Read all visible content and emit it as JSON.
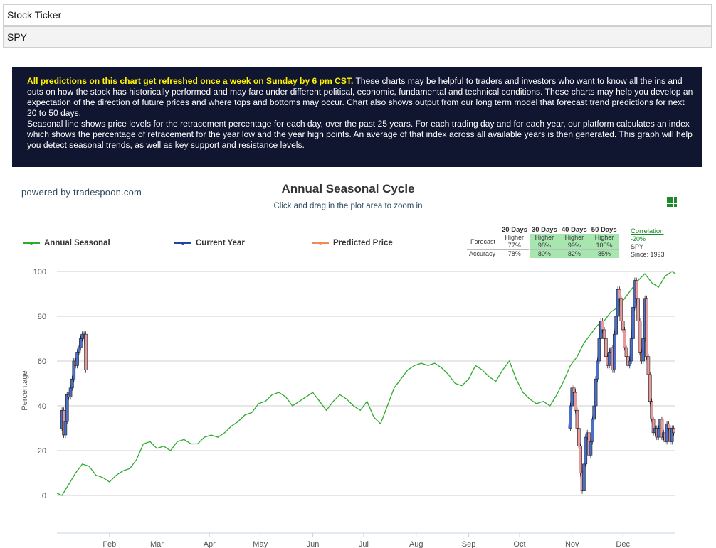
{
  "ticker": {
    "label": "Stock Ticker",
    "value": "SPY"
  },
  "notice": {
    "highlight": "All predictions on this chart get refreshed once a week on Sunday by 6 pm CST.",
    "text1": " These charts may be helpful to traders and investors who want to know all the ins and outs on how the stock has historically performed and may fare under different political, economic, fundamental and technical conditions. These charts may help you develop an expectation of the direction of future prices and where tops and bottoms may occur. Chart also shows output from our long term model that forecast trend predictions for next 20 to 50 days.",
    "text2": "Seasonal line shows price levels for the retracement percentage for each day, over the past 25 years. For each trading day and for each year, our platform calculates an index which shows the percentage of retracement for the year low and the year high points. An average of that index across all available years is then generated. This graph will help you detect seasonal trends, as well as key support and resistance levels."
  },
  "powered_by": "powered by tradespoon.com",
  "forecast": {
    "headers": [
      "20 Days",
      "30 Days",
      "40 Days",
      "50 Days"
    ],
    "forecast_label": "Forecast",
    "accuracy_label": "Accuracy",
    "direction": [
      "Higher",
      "Higher",
      "Higher",
      "Higher"
    ],
    "probability": [
      "77%",
      "98%",
      "99%",
      "100%"
    ],
    "accuracy": [
      "78%",
      "80%",
      "82%",
      "85%"
    ],
    "correlation_link": "Correlation",
    "correlation_value": "-20%",
    "symbol": "SPY",
    "since": "Since: 1993",
    "colors": {
      "highlight": "#a8e6b0",
      "link": "#1a8a2a"
    }
  },
  "colors": {
    "seasonal": "#2eaa2e",
    "current": "#2244aa",
    "predicted": "#f08a5a",
    "up_candle": "#4a6fc8",
    "down_candle": "#e89a9a"
  },
  "chart_data": {
    "type": "line",
    "title": "Annual Seasonal Cycle",
    "subtitle": "Click and drag in the plot area to zoom in",
    "ylabel": "Percentage",
    "xlabel": "",
    "ylim": [
      0,
      100
    ],
    "y_ticks": [
      0,
      20,
      40,
      60,
      80,
      100
    ],
    "x_range_days": [
      1,
      366
    ],
    "x_ticks": [
      {
        "label": "Feb",
        "day": 32
      },
      {
        "label": "Mar",
        "day": 60
      },
      {
        "label": "Apr",
        "day": 91
      },
      {
        "label": "May",
        "day": 121
      },
      {
        "label": "Jun",
        "day": 152
      },
      {
        "label": "Jul",
        "day": 182
      },
      {
        "label": "Aug",
        "day": 213
      },
      {
        "label": "Sep",
        "day": 244
      },
      {
        "label": "Oct",
        "day": 274
      },
      {
        "label": "Nov",
        "day": 305
      },
      {
        "label": "Dec",
        "day": 335
      }
    ],
    "legend": [
      "Annual Seasonal",
      "Current Year",
      "Predicted Price"
    ],
    "grid": true,
    "series": [
      {
        "name": "Annual Seasonal",
        "x": [
          1,
          4,
          8,
          12,
          16,
          20,
          24,
          28,
          32,
          36,
          40,
          44,
          48,
          52,
          56,
          60,
          64,
          68,
          72,
          76,
          80,
          84,
          88,
          92,
          96,
          100,
          104,
          108,
          112,
          116,
          120,
          124,
          128,
          132,
          136,
          140,
          144,
          148,
          152,
          156,
          160,
          164,
          168,
          172,
          176,
          180,
          184,
          188,
          192,
          196,
          200,
          204,
          208,
          212,
          216,
          220,
          224,
          228,
          232,
          236,
          240,
          244,
          248,
          252,
          256,
          260,
          264,
          268,
          272,
          276,
          280,
          284,
          288,
          292,
          296,
          300,
          304,
          308,
          312,
          316,
          320,
          324,
          328,
          332,
          336,
          340,
          344,
          348,
          352,
          356,
          360,
          364,
          366
        ],
        "y": [
          1,
          0,
          5,
          10,
          14,
          13,
          9,
          8,
          6,
          9,
          11,
          12,
          16,
          23,
          24,
          21,
          22,
          20,
          24,
          25,
          23,
          23,
          26,
          27,
          26,
          28,
          31,
          33,
          36,
          37,
          41,
          42,
          45,
          46,
          44,
          40,
          42,
          44,
          46,
          42,
          38,
          42,
          45,
          43,
          40,
          38,
          42,
          35,
          32,
          40,
          48,
          52,
          56,
          58,
          59,
          58,
          59,
          57,
          54,
          50,
          49,
          52,
          58,
          56,
          53,
          51,
          56,
          60,
          52,
          46,
          43,
          41,
          42,
          40,
          45,
          51,
          58,
          62,
          68,
          72,
          76,
          78,
          82,
          84,
          88,
          92,
          96,
          99,
          95,
          93,
          98,
          100,
          99
        ]
      },
      {
        "name": "Current Year",
        "x": [
          3,
          4,
          5,
          6,
          7,
          8,
          9,
          10,
          11,
          12,
          13,
          14,
          15,
          16,
          17,
          18,
          303,
          304,
          305,
          306,
          307,
          308,
          309,
          310,
          311,
          312,
          313,
          314,
          315,
          316,
          317,
          318,
          319,
          320,
          321,
          322,
          323,
          324,
          325,
          326,
          327,
          328,
          329,
          330,
          331,
          332,
          333,
          334,
          335,
          336,
          337,
          338,
          339,
          340,
          341,
          342,
          343,
          344,
          345,
          346,
          347,
          348,
          349,
          350,
          351,
          352,
          353,
          354,
          355,
          356,
          357,
          358,
          359,
          360,
          361,
          362,
          363,
          364,
          365
        ],
        "y": [
          30,
          38,
          27,
          33,
          45,
          44,
          48,
          52,
          60,
          58,
          64,
          66,
          70,
          72,
          72,
          56,
          30,
          40,
          48,
          46,
          38,
          30,
          22,
          10,
          2,
          14,
          26,
          28,
          18,
          24,
          34,
          40,
          52,
          60,
          70,
          78,
          74,
          70,
          62,
          58,
          64,
          66,
          56,
          72,
          80,
          92,
          88,
          78,
          74,
          66,
          62,
          58,
          60,
          70,
          84,
          96,
          88,
          78,
          64,
          60,
          70,
          88,
          62,
          54,
          42,
          34,
          28,
          30,
          26,
          30,
          34,
          26,
          28,
          24,
          32,
          30,
          24,
          30,
          28
        ]
      },
      {
        "name": "Predicted Price",
        "x": [],
        "y": []
      }
    ]
  }
}
